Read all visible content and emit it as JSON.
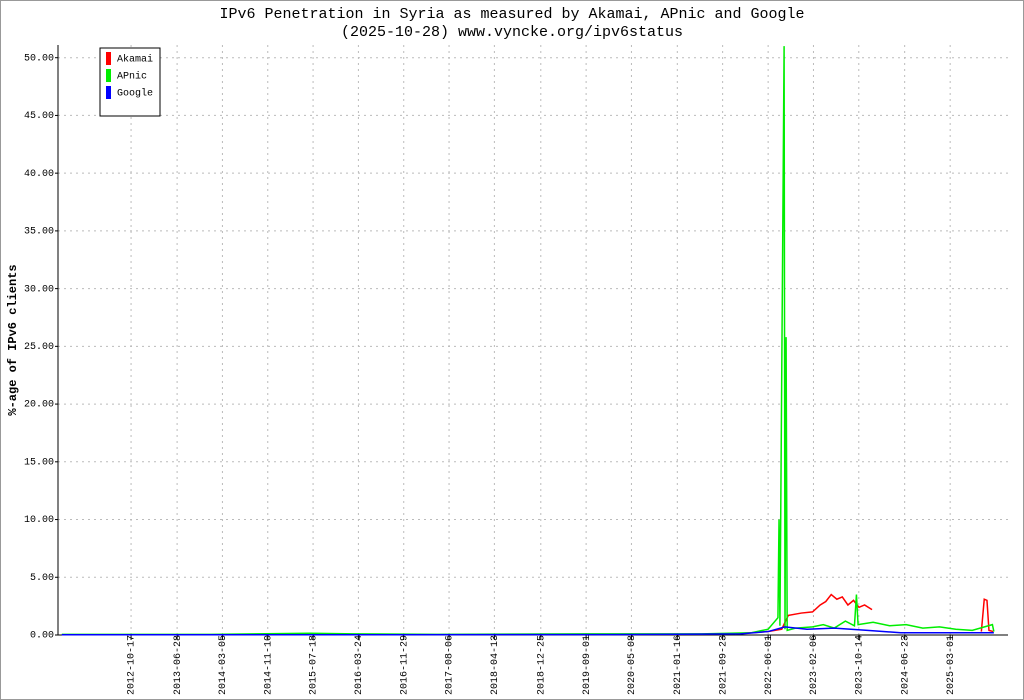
{
  "chart_data": {
    "type": "line",
    "title": "IPv6 Penetration in Syria as measured by Akamai, APnic and Google",
    "subtitle": "(2025-10-28) www.vyncke.org/ipv6status",
    "y_label": "%-age of IPv6 clients",
    "xlim": [
      "2011-09-10",
      "2026-01-14"
    ],
    "xticks": [
      "2012-10-17",
      "2013-06-28",
      "2014-03-05",
      "2014-11-10",
      "2015-07-18",
      "2016-03-24",
      "2016-11-29",
      "2017-08-06",
      "2018-04-13",
      "2018-12-25",
      "2019-09-01",
      "2020-05-08",
      "2021-01-16",
      "2021-09-23",
      "2022-06-01",
      "2023-02-06",
      "2023-10-14",
      "2024-06-23",
      "2025-03-01"
    ],
    "ylim": [
      0,
      51.1
    ],
    "yticks": [
      {
        "value": 0,
        "label": "0.00"
      },
      {
        "value": 5,
        "label": "5.00"
      },
      {
        "value": 10,
        "label": "10.00"
      },
      {
        "value": 15,
        "label": "15.00"
      },
      {
        "value": 20,
        "label": "20.00"
      },
      {
        "value": 25,
        "label": "25.00"
      },
      {
        "value": 30,
        "label": "30.00"
      },
      {
        "value": 35,
        "label": "35.00"
      },
      {
        "value": 40,
        "label": "40.00"
      },
      {
        "value": 45,
        "label": "45.00"
      },
      {
        "value": 50,
        "label": "50.00"
      }
    ],
    "grid": true,
    "legend": "upper left",
    "series": [
      {
        "name": "Akamai",
        "color": "#ff0000",
        "x": [
          "2021-12-01",
          "2022-03-01",
          "2022-06-01",
          "2022-08-15",
          "2022-09-20",
          "2022-12-01",
          "2023-02-01",
          "2023-03-15",
          "2023-04-15",
          "2023-05-15",
          "2023-06-15",
          "2023-07-15",
          "2023-08-15",
          "2023-09-15",
          "2023-10-15",
          "2023-11-15",
          "2023-12-26",
          "2024-06-01",
          "2025-08-20",
          "2025-09-05",
          "2025-09-20",
          "2025-10-01",
          "2025-10-25"
        ],
        "values": [
          0.1,
          0.2,
          0.3,
          0.5,
          1.7,
          1.9,
          2.0,
          2.6,
          2.9,
          3.5,
          3.1,
          3.3,
          2.6,
          3.0,
          2.4,
          2.6,
          2.2,
          null,
          0.3,
          3.1,
          3.0,
          0.4,
          0.3
        ]
      },
      {
        "name": "APnic",
        "color": "#00ee00",
        "x": [
          "2011-10-01",
          "2014-01-01",
          "2015-07-01",
          "2016-03-01",
          "2017-06-01",
          "2019-09-01",
          "2021-06-01",
          "2022-03-01",
          "2022-06-01",
          "2022-07-25",
          "2022-07-31",
          "2022-08-05",
          "2022-08-28",
          "2022-09-02",
          "2022-09-08",
          "2022-09-14",
          "2022-11-01",
          "2023-02-01",
          "2023-04-01",
          "2023-06-01",
          "2023-08-01",
          "2023-09-20",
          "2023-10-01",
          "2023-10-10",
          "2024-01-01",
          "2024-04-01",
          "2024-07-01",
          "2024-10-01",
          "2025-01-01",
          "2025-04-01",
          "2025-07-01",
          "2025-10-20",
          "2025-10-28"
        ],
        "values": [
          0.05,
          0.05,
          0.15,
          0.1,
          0.05,
          0.1,
          0.1,
          0.2,
          0.5,
          1.5,
          10.0,
          0.8,
          51.0,
          0.5,
          25.8,
          0.4,
          0.6,
          0.7,
          0.9,
          0.6,
          1.2,
          0.8,
          3.5,
          0.9,
          1.1,
          0.8,
          0.9,
          0.6,
          0.7,
          0.5,
          0.4,
          0.9,
          0.3
        ]
      },
      {
        "name": "Google",
        "color": "#0000ff",
        "x": [
          "2011-10-01",
          "2020-01-01",
          "2022-01-01",
          "2022-06-01",
          "2022-09-01",
          "2023-01-01",
          "2023-06-01",
          "2023-12-01",
          "2024-06-01",
          "2025-01-01",
          "2025-10-28"
        ],
        "values": [
          0.02,
          0.03,
          0.1,
          0.3,
          0.7,
          0.5,
          0.6,
          0.4,
          0.2,
          0.2,
          0.2
        ]
      }
    ]
  }
}
